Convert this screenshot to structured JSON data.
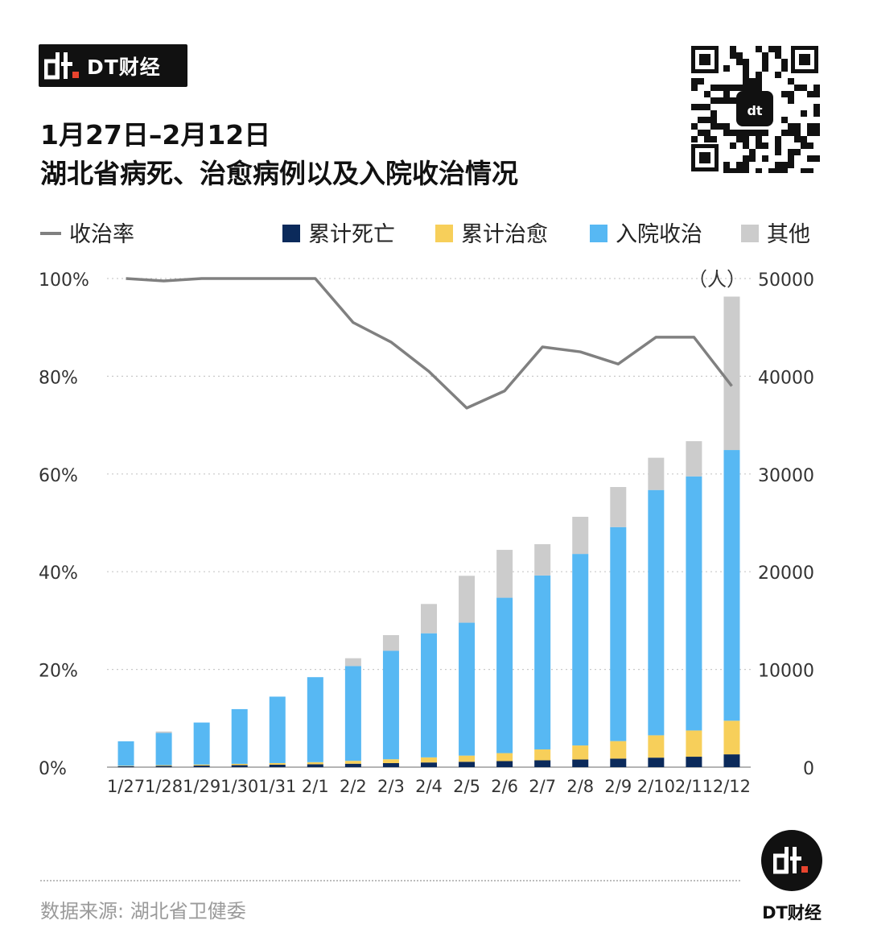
{
  "brand": {
    "name": "DT财经",
    "icon": "dt-logo-icon",
    "accent": "#e8442e"
  },
  "title": {
    "line1": "1月27日–2月12日",
    "line2": "湖北省病死、治愈病例以及入院收治情况"
  },
  "qr": {
    "icon": "qr-code-icon"
  },
  "footer": {
    "source": "数据来源: 湖北省卫健委",
    "logo_text": "DT财经"
  },
  "chart_data": {
    "type": "bar",
    "stacked": true,
    "categories": [
      "1/27",
      "1/28",
      "1/29",
      "1/30",
      "1/31",
      "2/1",
      "2/2",
      "2/3",
      "2/4",
      "2/5",
      "2/6",
      "2/7",
      "2/8",
      "2/9",
      "2/10",
      "2/11",
      "2/12"
    ],
    "series": [
      {
        "name": "累计死亡",
        "color": "#0b2a5b",
        "values": [
          100,
          125,
          162,
          204,
          249,
          294,
          350,
          414,
          479,
          549,
          618,
          699,
          780,
          871,
          974,
          1068,
          1310
        ]
      },
      {
        "name": "累计治愈",
        "color": "#f7cf5a",
        "values": [
          47,
          75,
          103,
          133,
          166,
          215,
          295,
          396,
          520,
          633,
          817,
          1115,
          1439,
          1795,
          2286,
          2686,
          3441
        ]
      },
      {
        "name": "入院收治",
        "color": "#57b8f3",
        "values": [
          2500,
          3300,
          4300,
          5600,
          6800,
          8700,
          9700,
          11100,
          12700,
          13600,
          15900,
          17800,
          19600,
          21900,
          25100,
          26000,
          27700
        ]
      },
      {
        "name": "其他",
        "color": "#cccccc",
        "values": [
          0,
          150,
          0,
          0,
          0,
          0,
          800,
          1600,
          3000,
          4800,
          4900,
          3200,
          3800,
          4100,
          3300,
          3600,
          15700
        ]
      }
    ],
    "line": {
      "name": "收治率",
      "color": "#808080",
      "axis": "left",
      "values": [
        100,
        99.5,
        100,
        100,
        100,
        100,
        91,
        87,
        81,
        73.5,
        77,
        86,
        85,
        82.5,
        88,
        88,
        78
      ]
    },
    "left_axis": {
      "min": 0,
      "max": 100,
      "ticks": [
        "0%",
        "20%",
        "40%",
        "60%",
        "80%",
        "100%"
      ]
    },
    "right_axis": {
      "min": 0,
      "max": 50000,
      "ticks": [
        "0",
        "10000",
        "20000",
        "30000",
        "40000",
        "50000"
      ],
      "unit": "（人）"
    },
    "grid": true,
    "legend_position": "top"
  }
}
